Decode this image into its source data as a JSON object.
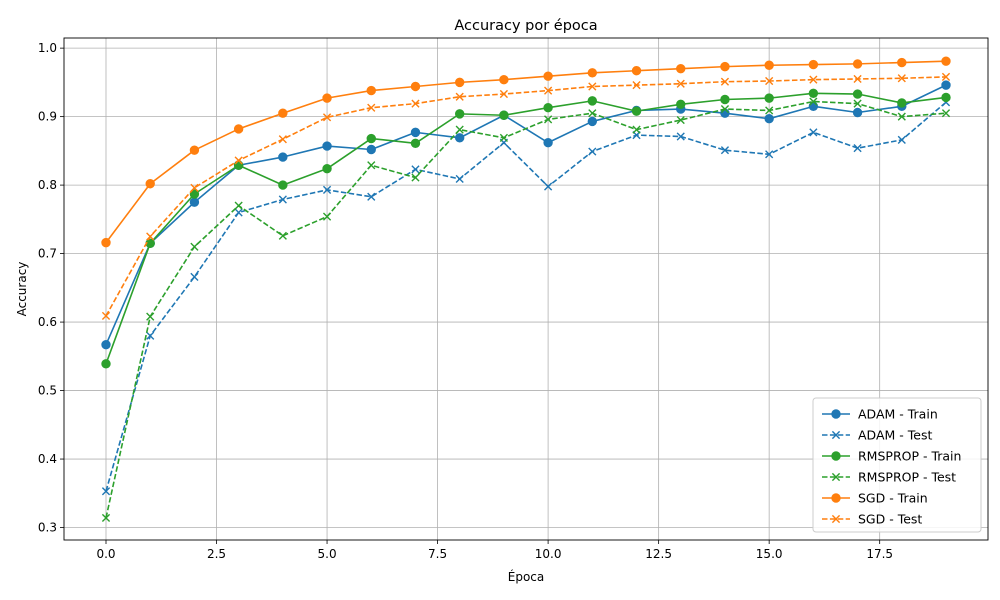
{
  "chart_data": {
    "type": "line",
    "title": "Accuracy por época",
    "xlabel": "Época",
    "ylabel": "Accuracy",
    "xlim": [
      -0.95,
      19.95
    ],
    "ylim": [
      0.2818,
      1.0148
    ],
    "xticks": [
      0.0,
      2.5,
      5.0,
      7.5,
      10.0,
      12.5,
      15.0,
      17.5
    ],
    "xtick_labels": [
      "0.0",
      "2.5",
      "5.0",
      "7.5",
      "10.0",
      "12.5",
      "15.0",
      "17.5"
    ],
    "yticks": [
      0.3,
      0.4,
      0.5,
      0.6,
      0.7,
      0.8,
      0.9,
      1.0
    ],
    "ytick_labels": [
      "0.3",
      "0.4",
      "0.5",
      "0.6",
      "0.7",
      "0.8",
      "0.9",
      "1.0"
    ],
    "grid": true,
    "legend_position": "lower-right",
    "x": [
      0,
      1,
      2,
      3,
      4,
      5,
      6,
      7,
      8,
      9,
      10,
      11,
      12,
      13,
      14,
      15,
      16,
      17,
      18,
      19
    ],
    "series": [
      {
        "name": "ADAM - Train",
        "color": "#1f77b4",
        "style": "solid",
        "marker": "circle",
        "values": [
          0.567,
          0.715,
          0.775,
          0.829,
          0.841,
          0.857,
          0.852,
          0.877,
          0.869,
          0.902,
          0.862,
          0.893,
          0.909,
          0.911,
          0.905,
          0.897,
          0.915,
          0.906,
          0.915,
          0.946
        ]
      },
      {
        "name": "ADAM - Test",
        "color": "#1f77b4",
        "style": "dashed",
        "marker": "x",
        "values": [
          0.353,
          0.58,
          0.666,
          0.76,
          0.779,
          0.793,
          0.783,
          0.823,
          0.809,
          0.862,
          0.798,
          0.849,
          0.873,
          0.871,
          0.851,
          0.845,
          0.877,
          0.854,
          0.866,
          0.921
        ]
      },
      {
        "name": "RMSPROP - Train",
        "color": "#2ca02c",
        "style": "solid",
        "marker": "circle",
        "values": [
          0.539,
          0.715,
          0.787,
          0.829,
          0.8,
          0.824,
          0.868,
          0.861,
          0.904,
          0.902,
          0.913,
          0.923,
          0.908,
          0.918,
          0.925,
          0.927,
          0.934,
          0.933,
          0.92,
          0.928
        ]
      },
      {
        "name": "RMSPROP - Test",
        "color": "#2ca02c",
        "style": "dashed",
        "marker": "x",
        "values": [
          0.314,
          0.608,
          0.71,
          0.77,
          0.726,
          0.754,
          0.829,
          0.811,
          0.881,
          0.869,
          0.896,
          0.905,
          0.881,
          0.895,
          0.911,
          0.909,
          0.922,
          0.919,
          0.9,
          0.905
        ]
      },
      {
        "name": "SGD - Train",
        "color": "#ff7f0e",
        "style": "solid",
        "marker": "circle",
        "values": [
          0.716,
          0.802,
          0.851,
          0.882,
          0.905,
          0.927,
          0.938,
          0.944,
          0.95,
          0.954,
          0.959,
          0.964,
          0.967,
          0.97,
          0.973,
          0.975,
          0.976,
          0.977,
          0.979,
          0.981
        ]
      },
      {
        "name": "SGD - Test",
        "color": "#ff7f0e",
        "style": "dashed",
        "marker": "x",
        "values": [
          0.609,
          0.725,
          0.796,
          0.836,
          0.867,
          0.899,
          0.913,
          0.919,
          0.929,
          0.933,
          0.938,
          0.944,
          0.946,
          0.948,
          0.951,
          0.952,
          0.954,
          0.955,
          0.956,
          0.958
        ]
      }
    ]
  }
}
